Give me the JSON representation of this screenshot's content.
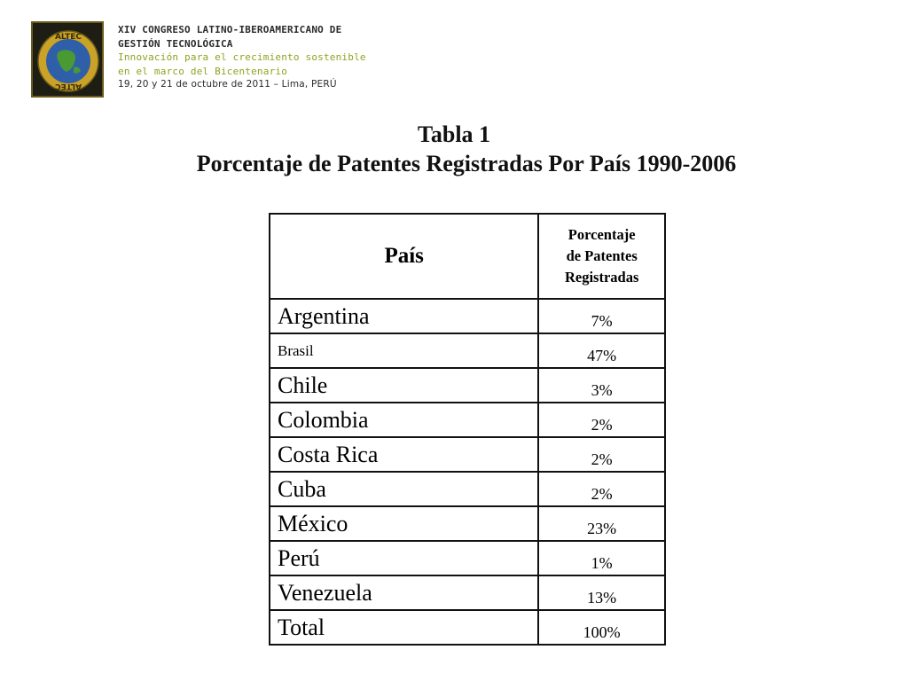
{
  "header": {
    "logo_text": "ALTEC",
    "line1": "XIV CONGRESO LATINO-IBEROAMERICANO DE",
    "line2": "GESTIÓN TECNOLÓGICA",
    "line3": "Innovación para el crecimiento sostenible",
    "line4": "en el marco del Bicentenario",
    "line5": "19, 20 y 21  de octubre de 2011 – Lima, PERÚ"
  },
  "title": {
    "line1": "Tabla 1",
    "line2": "Porcentaje de Patentes Registradas Por País 1990-2006"
  },
  "table": {
    "headers": {
      "country": "País",
      "value_line1": "Porcentaje",
      "value_line2": "de Patentes",
      "value_line3": "Registradas"
    },
    "rows": [
      {
        "country": "Argentina",
        "value": "7%"
      },
      {
        "country": "Brasil",
        "value": "47%"
      },
      {
        "country": "Chile",
        "value": "3%"
      },
      {
        "country": "Colombia",
        "value": "2%"
      },
      {
        "country": "Costa Rica",
        "value": "2%"
      },
      {
        "country": "Cuba",
        "value": "2%"
      },
      {
        "country": "México",
        "value": "23%"
      },
      {
        "country": "Perú",
        "value": "1%"
      },
      {
        "country": "Venezuela",
        "value": "13%"
      },
      {
        "country": "Total",
        "value": "100%"
      }
    ]
  },
  "colors": {
    "accent_green": "#8aa51f",
    "text_dark": "#2b2b2b",
    "logo_gold": "#c9a227"
  }
}
